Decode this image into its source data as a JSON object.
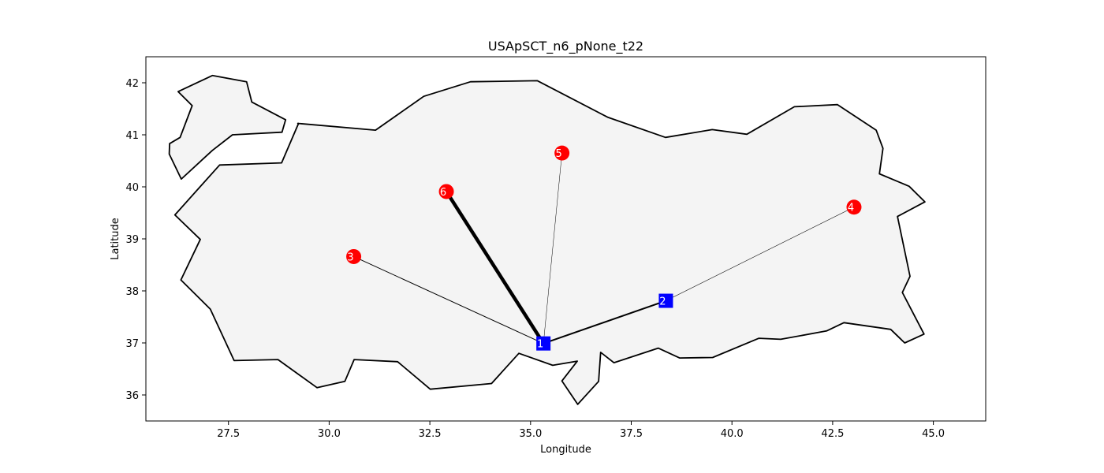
{
  "chart_data": {
    "type": "network-map",
    "title": "USApSCT_n6_pNone_t22",
    "xlabel": "Longitude",
    "ylabel": "Latitude",
    "xlim": [
      25.45,
      46.3
    ],
    "ylim": [
      35.5,
      42.5
    ],
    "x_ticks": [
      27.5,
      30.0,
      32.5,
      35.0,
      37.5,
      40.0,
      42.5,
      45.0
    ],
    "x_tick_labels": [
      "27.5",
      "30.0",
      "32.5",
      "35.0",
      "37.5",
      "40.0",
      "42.5",
      "45.0"
    ],
    "y_ticks": [
      36,
      37,
      38,
      39,
      40,
      41,
      42
    ],
    "y_tick_labels": [
      "36",
      "37",
      "38",
      "39",
      "40",
      "41",
      "42"
    ],
    "land_fill": "#f4f4f4",
    "land_stroke": "#000000",
    "hub_color": "#0000ff",
    "spoke_color": "#ff0000",
    "nodes": [
      {
        "id": "1",
        "label": "1",
        "lon": 35.32,
        "lat": 36.99,
        "type": "hub"
      },
      {
        "id": "2",
        "label": "2",
        "lon": 38.36,
        "lat": 37.81,
        "type": "hub"
      },
      {
        "id": "3",
        "label": "3",
        "lon": 30.61,
        "lat": 38.66,
        "type": "spoke"
      },
      {
        "id": "4",
        "label": "4",
        "lon": 43.03,
        "lat": 39.61,
        "type": "spoke"
      },
      {
        "id": "5",
        "label": "5",
        "lon": 35.78,
        "lat": 40.65,
        "type": "spoke"
      },
      {
        "id": "6",
        "label": "6",
        "lon": 32.91,
        "lat": 39.91,
        "type": "spoke"
      }
    ],
    "edges": [
      {
        "from": "1",
        "to": "6",
        "weight": 4.5
      },
      {
        "from": "1",
        "to": "3",
        "weight": 1.0
      },
      {
        "from": "1",
        "to": "5",
        "weight": 0.5
      },
      {
        "from": "1",
        "to": "2",
        "weight": 2.0
      },
      {
        "from": "2",
        "to": "4",
        "weight": 0.6
      }
    ],
    "outline": {
      "thrace": [
        [
          26.25,
          41.83
        ],
        [
          27.1,
          42.14
        ],
        [
          27.95,
          42.02
        ],
        [
          28.08,
          41.63
        ],
        [
          28.92,
          41.29
        ],
        [
          28.83,
          41.05
        ],
        [
          27.6,
          41.0
        ],
        [
          27.1,
          40.7
        ],
        [
          26.33,
          40.15
        ],
        [
          26.03,
          40.63
        ],
        [
          26.04,
          40.83
        ],
        [
          26.3,
          40.95
        ],
        [
          26.6,
          41.56
        ],
        [
          26.25,
          41.83
        ]
      ],
      "anatolia": [
        [
          29.22,
          41.22
        ],
        [
          31.15,
          41.09
        ],
        [
          32.35,
          41.74
        ],
        [
          33.51,
          42.02
        ],
        [
          35.17,
          42.04
        ],
        [
          36.91,
          41.34
        ],
        [
          38.35,
          40.95
        ],
        [
          39.51,
          41.1
        ],
        [
          40.37,
          41.01
        ],
        [
          41.55,
          41.54
        ],
        [
          42.62,
          41.58
        ],
        [
          43.58,
          41.09
        ],
        [
          43.75,
          40.74
        ],
        [
          43.66,
          40.25
        ],
        [
          44.4,
          40.01
        ],
        [
          44.79,
          39.71
        ],
        [
          44.11,
          39.43
        ],
        [
          44.42,
          38.28
        ],
        [
          44.23,
          37.97
        ],
        [
          44.77,
          37.17
        ],
        [
          44.29,
          37.0
        ],
        [
          43.94,
          37.26
        ],
        [
          42.78,
          37.39
        ],
        [
          42.35,
          37.23
        ],
        [
          41.21,
          37.07
        ],
        [
          40.67,
          37.09
        ],
        [
          39.52,
          36.72
        ],
        [
          38.7,
          36.71
        ],
        [
          38.17,
          36.9
        ],
        [
          37.07,
          36.62
        ],
        [
          36.74,
          36.82
        ],
        [
          36.69,
          36.26
        ],
        [
          36.17,
          35.82
        ],
        [
          35.78,
          36.27
        ],
        [
          36.16,
          36.65
        ],
        [
          35.55,
          36.57
        ],
        [
          34.71,
          36.8
        ],
        [
          34.03,
          36.22
        ],
        [
          32.51,
          36.11
        ],
        [
          31.7,
          36.64
        ],
        [
          30.62,
          36.68
        ],
        [
          30.39,
          36.26
        ],
        [
          29.7,
          36.14
        ],
        [
          28.73,
          36.68
        ],
        [
          27.64,
          36.66
        ],
        [
          27.05,
          37.65
        ],
        [
          26.32,
          38.21
        ],
        [
          26.8,
          38.99
        ],
        [
          26.17,
          39.46
        ],
        [
          27.28,
          40.42
        ],
        [
          28.82,
          40.46
        ],
        [
          29.24,
          41.22
        ]
      ]
    }
  }
}
